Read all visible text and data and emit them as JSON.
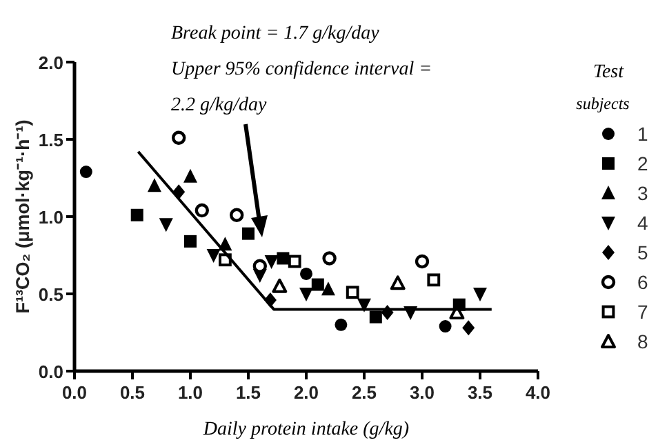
{
  "chart_data": {
    "type": "scatter",
    "xlabel": "Daily protein intake (g/kg)",
    "ylabel": "F¹³CO₂ (μmol·kg⁻¹·h⁻¹)",
    "legend_title": "Test subjects",
    "legend": "right",
    "annotations": [
      "Break point = 1.7 g/kg/day",
      "Upper 95% confidence interval =",
      "2.2 g/kg/day"
    ],
    "xlim": [
      0,
      4
    ],
    "xticks": [
      {
        "value": 0,
        "label": "0.0"
      },
      {
        "value": 0.5,
        "label": "0.5"
      },
      {
        "value": 1,
        "label": "1.0"
      },
      {
        "value": 1.5,
        "label": "1.5"
      },
      {
        "value": 2,
        "label": "2.0"
      },
      {
        "value": 2.5,
        "label": "2.5"
      },
      {
        "value": 3,
        "label": "3.0"
      },
      {
        "value": 3.5,
        "label": "3.5"
      },
      {
        "value": 4,
        "label": "4.0"
      }
    ],
    "ylim": [
      0,
      2
    ],
    "yticks": [
      {
        "value": 0,
        "label": "0.0"
      },
      {
        "value": 0.5,
        "label": "0.5"
      },
      {
        "value": 1,
        "label": "1.0"
      },
      {
        "value": 1.5,
        "label": "1.5"
      },
      {
        "value": 2,
        "label": "2.0"
      }
    ],
    "series": [
      {
        "name": "1",
        "color": "#000000",
        "marker": "circle",
        "x": [
          0.1,
          2.0,
          2.3,
          3.2
        ],
        "values": [
          1.29,
          0.63,
          0.3,
          0.29
        ]
      },
      {
        "name": "2",
        "color": "#000000",
        "marker": "square",
        "x": [
          0.54,
          1.0,
          1.5,
          1.8,
          2.1,
          2.6,
          3.32
        ],
        "values": [
          1.01,
          0.84,
          0.89,
          0.73,
          0.56,
          0.35,
          0.43
        ]
      },
      {
        "name": "3",
        "color": "#000000",
        "marker": "triangle",
        "x": [
          0.69,
          1.0,
          1.3,
          2.19
        ],
        "values": [
          1.2,
          1.26,
          0.82,
          0.53
        ]
      },
      {
        "name": "4",
        "color": "#000000",
        "marker": "triangle-down",
        "x": [
          0.79,
          1.2,
          1.6,
          1.7,
          2.0,
          2.5,
          2.9,
          3.5
        ],
        "values": [
          0.95,
          0.75,
          0.62,
          0.71,
          0.5,
          0.43,
          0.38,
          0.5
        ]
      },
      {
        "name": "5",
        "color": "#000000",
        "marker": "diamond",
        "x": [
          0.9,
          1.69,
          2.7,
          3.4
        ],
        "values": [
          1.16,
          0.46,
          0.38,
          0.28
        ]
      },
      {
        "name": "6",
        "color": "#000000",
        "marker": "circle",
        "x": [
          0.9,
          1.1,
          1.4,
          1.6,
          2.2,
          3.0
        ],
        "values": [
          1.51,
          1.04,
          1.01,
          0.68,
          0.73,
          0.71
        ]
      },
      {
        "name": "7",
        "color": "#000000",
        "marker": "square",
        "x": [
          1.3,
          1.9,
          2.4,
          3.1
        ],
        "values": [
          0.72,
          0.71,
          0.51,
          0.59
        ]
      },
      {
        "name": "8",
        "color": "#000000",
        "marker": "triangle",
        "x": [
          1.77,
          2.79,
          3.3
        ],
        "values": [
          0.55,
          0.57,
          0.38
        ]
      },
      {
        "type": "line",
        "color": "#000000",
        "marker": "none",
        "x": [
          0.55,
          1.72,
          3.6
        ],
        "values": [
          1.42,
          0.4,
          0.4
        ]
      }
    ]
  }
}
